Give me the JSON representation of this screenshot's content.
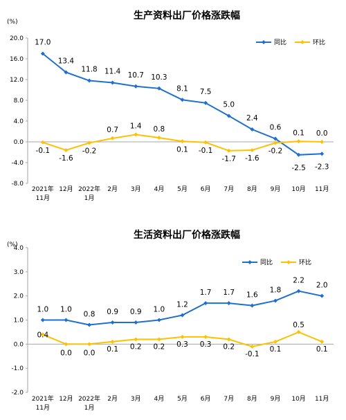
{
  "chart_data": [
    {
      "type": "line",
      "title": "生产资料出厂价格涨跌幅",
      "yunit": "(%)",
      "ylim": [
        -8.0,
        20.0
      ],
      "yticks": [
        "20.0",
        "16.0",
        "12.0",
        "8.0",
        "4.0",
        "0.0",
        "-4.0",
        "-8.0"
      ],
      "ytick_values": [
        20,
        16,
        12,
        8,
        4,
        0,
        -4,
        -8
      ],
      "categories": [
        [
          "2021年",
          "11月"
        ],
        [
          "12月"
        ],
        [
          "2022年",
          "1月"
        ],
        [
          "2月"
        ],
        [
          "3月"
        ],
        [
          "4月"
        ],
        [
          "5月"
        ],
        [
          "6月"
        ],
        [
          "7月"
        ],
        [
          "8月"
        ],
        [
          "9月"
        ],
        [
          "10月"
        ],
        [
          "11月"
        ]
      ],
      "series": [
        {
          "name": "同比",
          "color": "#1f6fce",
          "values": [
            17.0,
            13.4,
            11.8,
            11.4,
            10.7,
            10.3,
            8.1,
            7.5,
            5.0,
            2.4,
            0.6,
            -2.5,
            -2.3
          ],
          "labels": [
            "17.0",
            "13.4",
            "11.8",
            "11.4",
            "10.7",
            "10.3",
            "8.1",
            "7.5",
            "5.0",
            "2.4",
            "0.6",
            "-2.5",
            "-2.3"
          ]
        },
        {
          "name": "环比",
          "color": "#ffc000",
          "values": [
            -0.1,
            -1.6,
            -0.2,
            0.7,
            1.4,
            0.8,
            0.1,
            -0.1,
            -1.7,
            -1.6,
            -0.2,
            0.1,
            0.0
          ],
          "labels": [
            "-0.1",
            "-1.6",
            "-0.2",
            "0.7",
            "1.4",
            "0.8",
            "0.1",
            "-0.1",
            "-1.7",
            "-1.6",
            "-0.2",
            "0.1",
            "0.0"
          ]
        }
      ],
      "legend": "top-right",
      "grid": false
    },
    {
      "type": "line",
      "title": "生活资料出厂价格涨跌幅",
      "yunit": "(%)",
      "ylim": [
        -2.0,
        4.0
      ],
      "yticks": [
        "4.0",
        "3.0",
        "2.0",
        "1.0",
        "0.0",
        "-1.0",
        "-2.0"
      ],
      "ytick_values": [
        4,
        3,
        2,
        1,
        0,
        -1,
        -2
      ],
      "categories": [
        [
          "2021年",
          "11月"
        ],
        [
          "12月"
        ],
        [
          "2022年",
          "1月"
        ],
        [
          "2月"
        ],
        [
          "3月"
        ],
        [
          "4月"
        ],
        [
          "5月"
        ],
        [
          "6月"
        ],
        [
          "7月"
        ],
        [
          "8月"
        ],
        [
          "9月"
        ],
        [
          "10月"
        ],
        [
          "11月"
        ]
      ],
      "series": [
        {
          "name": "同比",
          "color": "#1f6fce",
          "values": [
            1.0,
            1.0,
            0.8,
            0.9,
            0.9,
            1.0,
            1.2,
            1.7,
            1.7,
            1.6,
            1.8,
            2.2,
            2.0
          ],
          "labels": [
            "1.0",
            "1.0",
            "0.8",
            "0.9",
            "0.9",
            "1.0",
            "1.2",
            "1.7",
            "1.7",
            "1.6",
            "1.8",
            "2.2",
            "2.0"
          ]
        },
        {
          "name": "环比",
          "color": "#ffc000",
          "values": [
            0.4,
            0.0,
            0.0,
            0.1,
            0.2,
            0.2,
            0.3,
            0.3,
            0.2,
            -0.1,
            0.1,
            0.5,
            0.1
          ],
          "labels": [
            "0.4",
            "0.0",
            "0.0",
            "0.1",
            "0.2",
            "0.2",
            "0.3",
            "0.3",
            "0.2",
            "-0.1",
            "0.1",
            "0.5",
            "0.1"
          ]
        }
      ],
      "legend": "top-right",
      "grid": false
    }
  ]
}
